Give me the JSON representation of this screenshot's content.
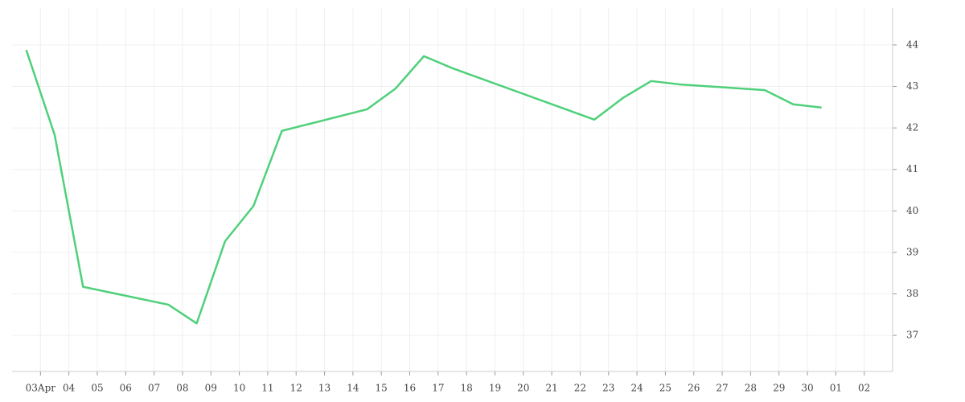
{
  "chart_data": {
    "type": "line",
    "x": [
      2.5,
      3.5,
      4.5,
      7.5,
      8.5,
      9.5,
      10.5,
      11.5,
      14.5,
      15.5,
      16.5,
      17.5,
      22.5,
      23.5,
      24.5,
      25.5,
      28.5,
      29.5,
      30.5
    ],
    "series": [
      {
        "color": "#4fd07a",
        "values": [
          43.88,
          41.83,
          38.17,
          37.74,
          37.29,
          39.27,
          40.12,
          41.93,
          42.45,
          42.95,
          43.73,
          43.44,
          42.2,
          42.72,
          43.13,
          43.05,
          42.91,
          42.57,
          42.49
        ]
      }
    ],
    "xlim": [
      2,
      33
    ],
    "xticks": [
      {
        "value": 3,
        "label": "03Apr"
      },
      {
        "value": 4,
        "label": "04"
      },
      {
        "value": 5,
        "label": "05"
      },
      {
        "value": 6,
        "label": "06"
      },
      {
        "value": 7,
        "label": "07"
      },
      {
        "value": 8,
        "label": "08"
      },
      {
        "value": 9,
        "label": "09"
      },
      10,
      11,
      12,
      13,
      14,
      15,
      16,
      17,
      18,
      19,
      20,
      21,
      22,
      23,
      24,
      25,
      26,
      27,
      28,
      29,
      30,
      {
        "value": 31,
        "label": "01"
      },
      {
        "value": 32,
        "label": "02"
      }
    ],
    "ylim": [
      36.13,
      44.89
    ],
    "yticks": [
      37,
      38,
      39,
      40,
      41,
      42,
      43,
      44
    ],
    "grid": true
  }
}
